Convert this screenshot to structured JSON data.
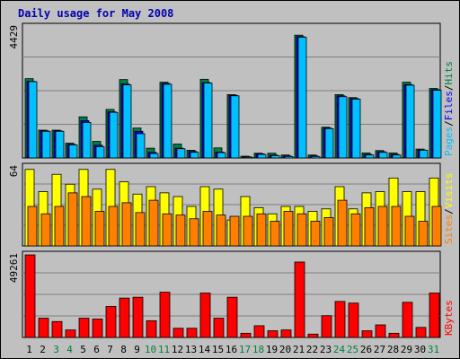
{
  "title": "Daily usage for May 2008",
  "colors": {
    "hits": "#008040",
    "files": "#0000ff",
    "pages": "#00c0ff",
    "visits": "#ffff00",
    "sites": "#ff8000",
    "kbytes": "#ff0000",
    "weekend": "#008040",
    "weekday": "#000000"
  },
  "chart_data": [
    {
      "type": "bar",
      "name": "hits-files-pages",
      "ymax_label": "4429",
      "legend": {
        "pages": "Pages",
        "files": "Files",
        "hits": "Hits",
        "sep": "/"
      },
      "categories": [
        "1",
        "2",
        "3",
        "4",
        "5",
        "6",
        "7",
        "8",
        "9",
        "10",
        "11",
        "12",
        "13",
        "14",
        "15",
        "16",
        "17",
        "18",
        "19",
        "20",
        "21",
        "22",
        "23",
        "24",
        "25",
        "26",
        "27",
        "28",
        "29",
        "30",
        "31"
      ],
      "weekend": [
        3,
        4,
        10,
        11,
        17,
        18,
        24,
        25,
        31
      ],
      "ylim": [
        0,
        4429
      ],
      "series": [
        {
          "key": "hits",
          "values": [
            2680,
            940,
            940,
            500,
            1390,
            560,
            1640,
            2650,
            1010,
            330,
            2560,
            470,
            260,
            2660,
            340,
            2140,
            60,
            160,
            160,
            100,
            4150,
            100,
            1040,
            2140,
            2040,
            170,
            250,
            170,
            2560,
            300,
            2350
          ]
        },
        {
          "key": "files",
          "values": [
            2590,
            920,
            920,
            460,
            1260,
            430,
            1560,
            2500,
            900,
            190,
            2520,
            330,
            220,
            2550,
            200,
            2120,
            40,
            140,
            100,
            70,
            4100,
            70,
            1010,
            2100,
            2010,
            120,
            210,
            120,
            2480,
            270,
            2310
          ]
        },
        {
          "key": "pages",
          "values": [
            2580,
            900,
            900,
            440,
            1200,
            380,
            1540,
            2470,
            820,
            150,
            2490,
            310,
            190,
            2530,
            180,
            2100,
            30,
            120,
            80,
            50,
            4080,
            50,
            990,
            2070,
            1990,
            100,
            190,
            100,
            2460,
            260,
            2290
          ]
        }
      ]
    },
    {
      "type": "bar",
      "name": "visits-sites",
      "ymax_label": "64",
      "legend": {
        "sites": "Sites",
        "visits": "Visits",
        "sep": "/"
      },
      "ylim": [
        0,
        64
      ],
      "series": [
        {
          "key": "visits",
          "values": [
            62,
            44,
            58,
            50,
            62,
            46,
            62,
            52,
            42,
            48,
            43,
            40,
            32,
            48,
            46,
            21,
            40,
            31,
            26,
            32,
            32,
            28,
            30,
            48,
            30,
            43,
            44,
            55,
            44,
            44,
            55
          ]
        },
        {
          "key": "sites",
          "values": [
            32,
            26,
            32,
            43,
            40,
            28,
            32,
            35,
            27,
            37,
            26,
            25,
            22,
            28,
            25,
            24,
            24,
            26,
            20,
            28,
            26,
            20,
            23,
            37,
            26,
            31,
            32,
            32,
            24,
            20,
            32
          ]
        }
      ]
    },
    {
      "type": "bar",
      "name": "kbytes",
      "ymax_label": "49261",
      "legend": {
        "kbytes": "KBytes"
      },
      "ylim": [
        0,
        49261
      ],
      "series": [
        {
          "key": "kbytes",
          "values": [
            49261,
            11500,
            9500,
            4500,
            11500,
            11000,
            18500,
            23500,
            24000,
            10000,
            27000,
            5500,
            5500,
            26500,
            11500,
            24000,
            2500,
            7000,
            4000,
            4500,
            45000,
            2000,
            13000,
            21500,
            20500,
            4000,
            7500,
            2500,
            21000,
            6000,
            26500
          ]
        }
      ]
    }
  ]
}
